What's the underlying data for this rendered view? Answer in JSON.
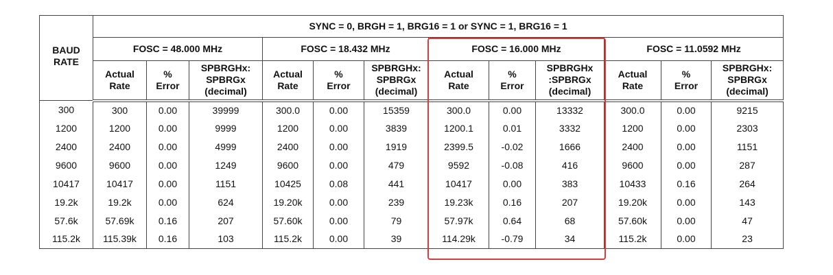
{
  "table": {
    "baud_header": "BAUD\nRATE",
    "sync_header": "SYNC = 0, BRGH = 1, BRG16 = 1 or SYNC = 1, BRG16 = 1",
    "groups": [
      {
        "fosc": "FOSC = 48.000 MHz",
        "columns": [
          "Actual\nRate",
          "%\nError",
          "SPBRGHx:\nSPBRGx\n(decimal)"
        ]
      },
      {
        "fosc": "FOSC = 18.432 MHz",
        "columns": [
          "Actual\nRate",
          "%\nError",
          "SPBRGHx:\nSPBRGx\n(decimal)"
        ]
      },
      {
        "fosc": "FOSC = 16.000 MHz",
        "columns": [
          "Actual\nRate",
          "%\nError",
          "SPBRGHx\n:SPBRGx\n(decimal)"
        ]
      },
      {
        "fosc": "FOSC = 11.0592 MHz",
        "columns": [
          "Actual\nRate",
          "%\nError",
          "SPBRGHx:\nSPBRGx\n(decimal)"
        ]
      }
    ],
    "rows": [
      [
        "300",
        "300",
        "0.00",
        "39999",
        "300.0",
        "0.00",
        "15359",
        "300.0",
        "0.00",
        "13332",
        "300.0",
        "0.00",
        "9215"
      ],
      [
        "1200",
        "1200",
        "0.00",
        "9999",
        "1200",
        "0.00",
        "3839",
        "1200.1",
        "0.01",
        "3332",
        "1200",
        "0.00",
        "2303"
      ],
      [
        "2400",
        "2400",
        "0.00",
        "4999",
        "2400",
        "0.00",
        "1919",
        "2399.5",
        "-0.02",
        "1666",
        "2400",
        "0.00",
        "1151"
      ],
      [
        "9600",
        "9600",
        "0.00",
        "1249",
        "9600",
        "0.00",
        "479",
        "9592",
        "-0.08",
        "416",
        "9600",
        "0.00",
        "287"
      ],
      [
        "10417",
        "10417",
        "0.00",
        "1151",
        "10425",
        "0.08",
        "441",
        "10417",
        "0.00",
        "383",
        "10433",
        "0.16",
        "264"
      ],
      [
        "19.2k",
        "19.2k",
        "0.00",
        "624",
        "19.20k",
        "0.00",
        "239",
        "19.23k",
        "0.16",
        "207",
        "19.20k",
        "0.00",
        "143"
      ],
      [
        "57.6k",
        "57.69k",
        "0.16",
        "207",
        "57.60k",
        "0.00",
        "79",
        "57.97k",
        "0.64",
        "68",
        "57.60k",
        "0.00",
        "47"
      ],
      [
        "115.2k",
        "115.39k",
        "0.16",
        "103",
        "115.2k",
        "0.00",
        "39",
        "114.29k",
        "-0.79",
        "34",
        "115.2k",
        "0.00",
        "23"
      ]
    ]
  }
}
